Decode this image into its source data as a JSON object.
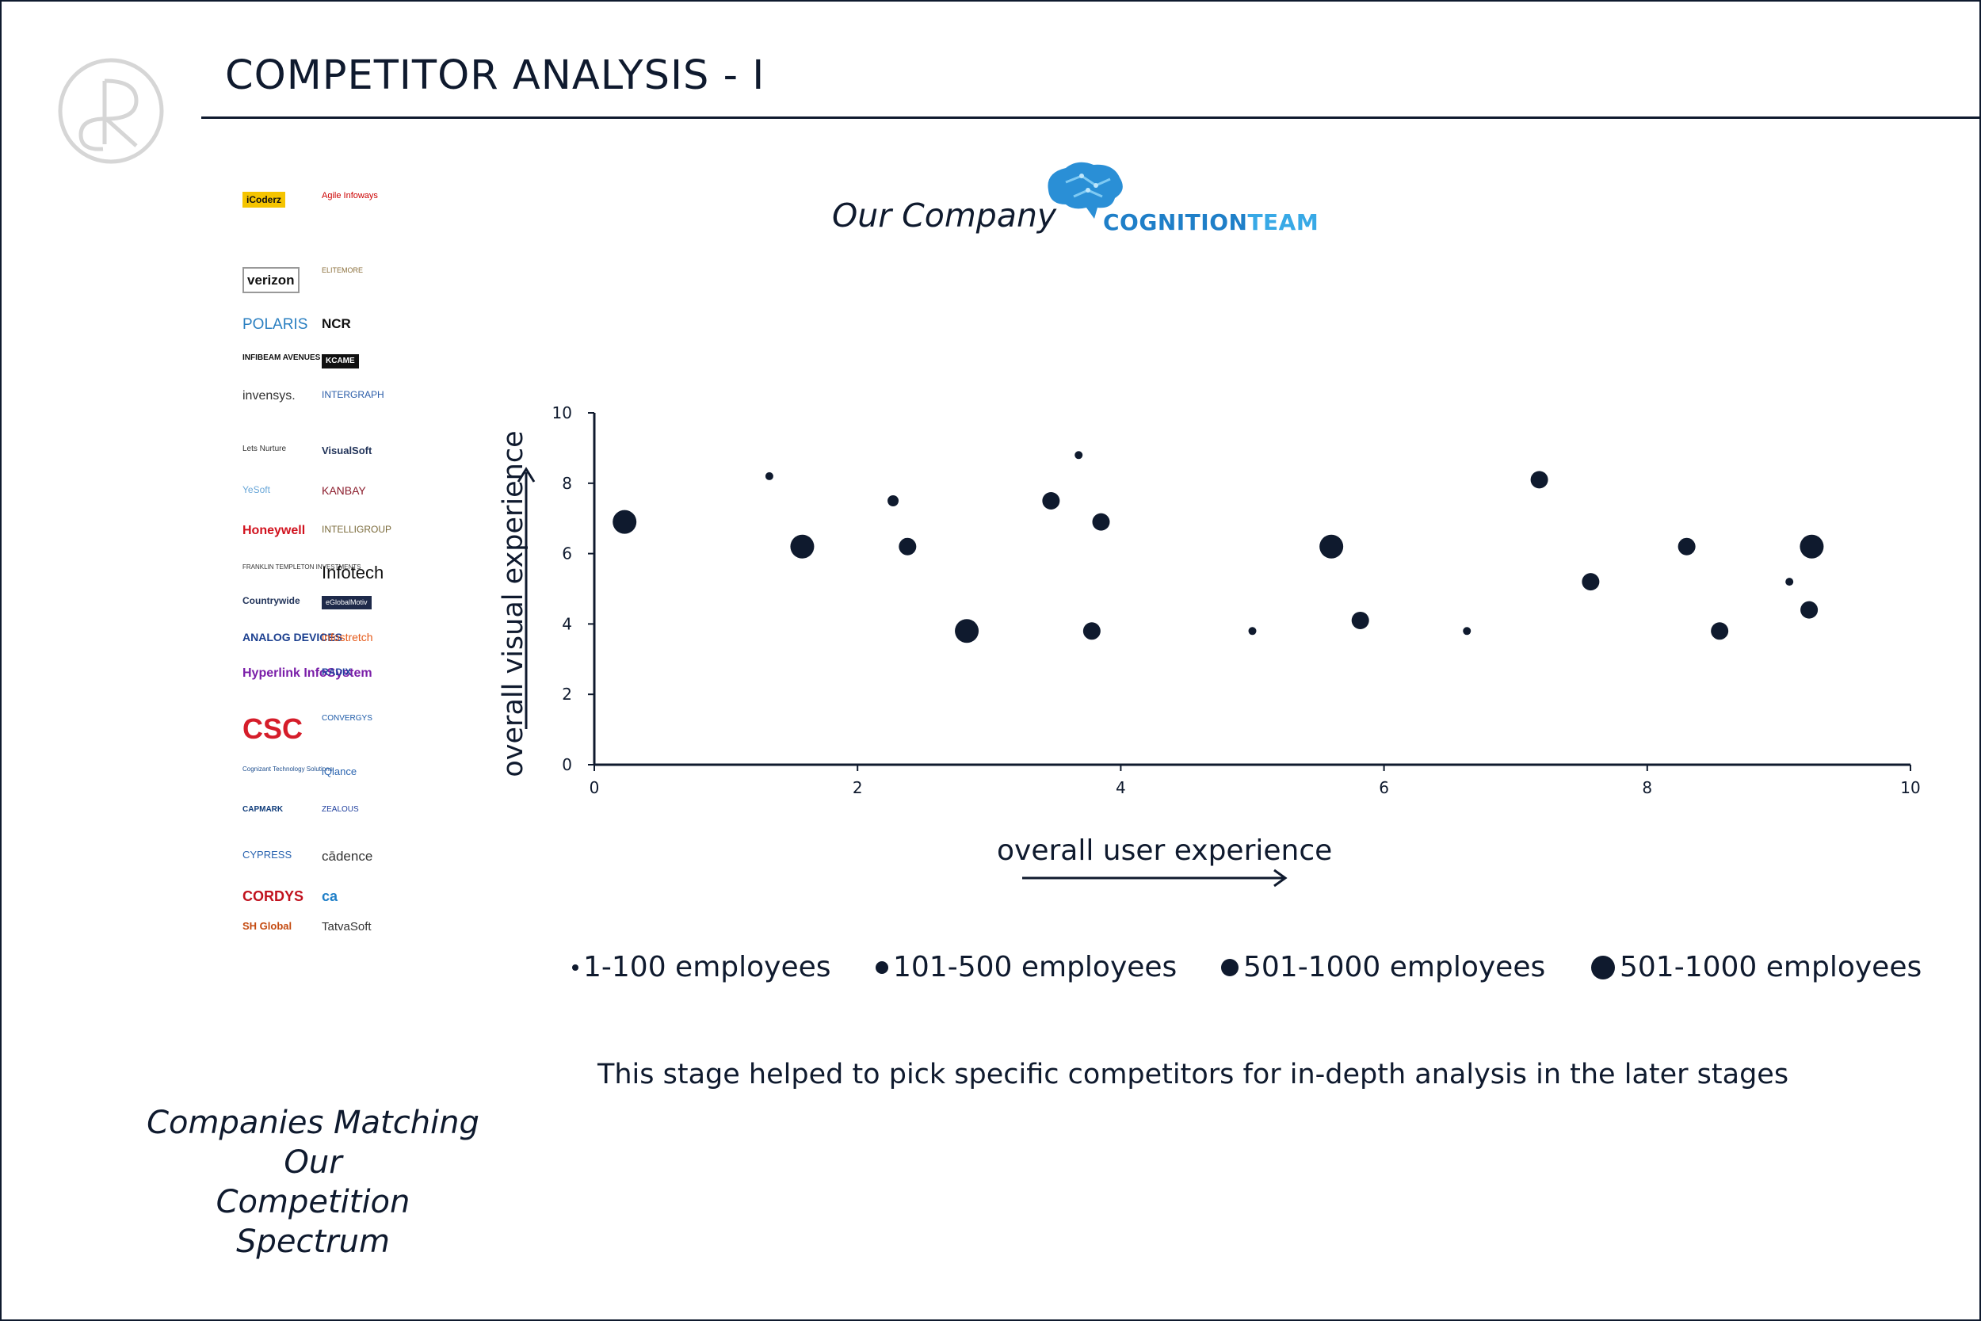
{
  "header": {
    "title": "COMPETITOR ANALYSIS -  I"
  },
  "competitors": {
    "logos": [
      "iCoderz",
      "Agile Infoways",
      "verizon",
      "ELITEMORE",
      "POLARIS",
      "NCR",
      "INFIBEAM AVENUES",
      "KCAME",
      "invensys.",
      "INTERGRAPH",
      "Lets Nurture",
      "VisualSoft",
      "YeSoft",
      "KANBAY",
      "Honeywell",
      "INTELLIGROUP",
      "FRANKLIN TEMPLETON INVESTMENTS",
      "Infotech",
      "Countrywide",
      "eGlobalMotiv",
      "ANALOG DEVICES",
      "infostretch",
      "Hyperlink InfoSystem",
      "RADIX",
      "CSC",
      "CONVERGYS",
      "Cognizant Technology Solutions",
      "iQlance",
      "CAPMARK",
      "ZEALOUS",
      "CYPRESS",
      "cādence",
      "CORDYS",
      "ca",
      "SH Global",
      "TatvaSoft"
    ],
    "caption_line1": "Companies Matching",
    "caption_line2": "Our",
    "caption_line3": "Competition Spectrum"
  },
  "our_company": {
    "label": "Our Company",
    "brand_part1": "COGNITION",
    "brand_part2": "TEAM"
  },
  "colors": {
    "ink": "#0f1a2e",
    "brand_dark": "#1f7fc8",
    "brand_light": "#38a9e6"
  },
  "chart_data": {
    "type": "scatter",
    "title": "",
    "xlabel": "overall user experience",
    "ylabel": "overall visual experience",
    "xlim": [
      0,
      10
    ],
    "ylim": [
      0,
      10
    ],
    "xticks": [
      0,
      2,
      4,
      6,
      8,
      10
    ],
    "yticks": [
      0,
      2,
      4,
      6,
      8,
      10
    ],
    "grid": false,
    "legend_position": "bottom",
    "series": [
      {
        "name": "1-100 employees",
        "size": 1,
        "points": [
          [
            1.33,
            8.2
          ],
          [
            3.68,
            8.8
          ],
          [
            5.0,
            3.8
          ],
          [
            6.63,
            3.8
          ],
          [
            9.08,
            5.2
          ]
        ]
      },
      {
        "name": "101-500 employees",
        "size": 2,
        "points": [
          [
            2.27,
            7.5
          ]
        ]
      },
      {
        "name": "501-1000 employees",
        "size": 3,
        "points": [
          [
            2.38,
            6.2
          ],
          [
            3.47,
            7.5
          ],
          [
            3.85,
            6.9
          ],
          [
            3.78,
            3.8
          ],
          [
            5.82,
            4.1
          ],
          [
            7.18,
            8.1
          ],
          [
            7.57,
            5.2
          ],
          [
            8.3,
            6.2
          ],
          [
            8.55,
            3.8
          ],
          [
            9.23,
            4.4
          ]
        ]
      },
      {
        "name": "501-1000 employees",
        "size": 4,
        "points": [
          [
            0.23,
            6.9
          ],
          [
            1.58,
            6.2
          ],
          [
            2.83,
            3.8
          ],
          [
            5.6,
            6.2
          ],
          [
            9.25,
            6.2
          ]
        ]
      }
    ]
  },
  "footer_note": "This stage helped to pick  specific competitors for in-depth analysis in the later stages"
}
